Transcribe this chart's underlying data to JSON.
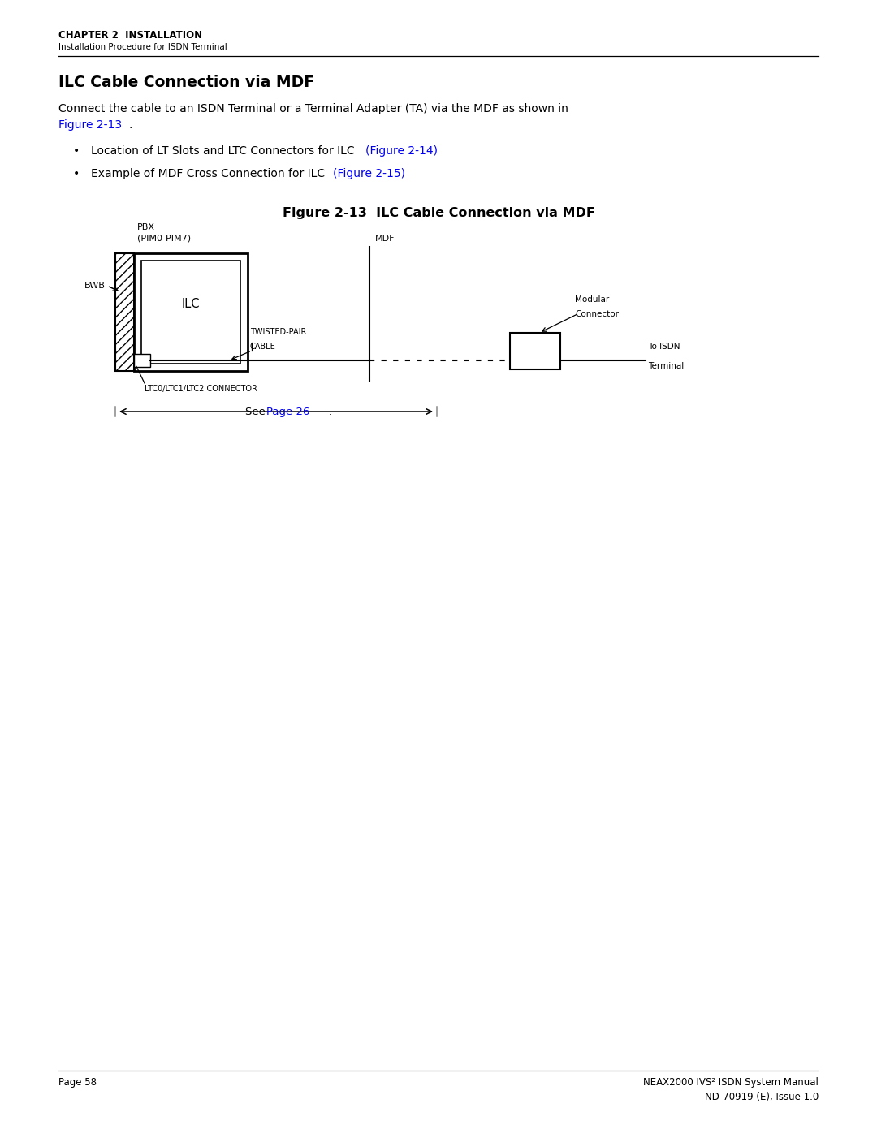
{
  "page_width": 10.8,
  "page_height": 13.97,
  "bg_color": "#ffffff",
  "header_chapter": "CHAPTER 2  INSTALLATION",
  "header_sub": "Installation Procedure for ISDN Terminal",
  "section_title": "ILC Cable Connection via MDF",
  "body_text_line1": "Connect the cable to an ISDN Terminal or a Terminal Adapter (TA) via the MDF as shown in",
  "body_text_fig_blue": "Figure 2-13",
  "body_text_fig_end": ".",
  "bullet1_black": "Location of LT Slots and LTC Connectors for ILC  ",
  "bullet1_blue": "(Figure 2-14)",
  "bullet2_black": "Example of MDF Cross Connection for ILC  ",
  "bullet2_blue": "(Figure 2-15)",
  "figure_title": "Figure 2-13  ILC Cable Connection via MDF",
  "blue_color": "#0000EE",
  "black_color": "#000000",
  "gray_color": "#888888",
  "footer_left": "Page 58",
  "footer_right1a": "NEAX2000 IVS",
  "footer_right1b": "2",
  "footer_right1c": " ISDN System Manual",
  "footer_right2": "ND-70919 (E), Issue 1.0",
  "see_black": "See ",
  "see_blue": "Page 26",
  "see_end": "."
}
